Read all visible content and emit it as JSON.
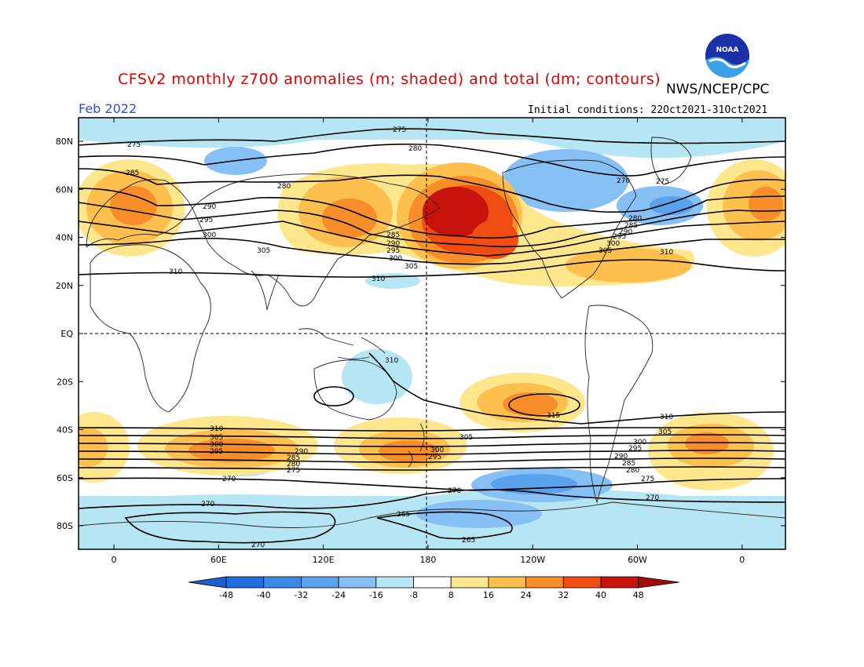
{
  "title": "CFSv2 monthly z700 anomalies (m; shaded) and total (dm; contours)",
  "agency": "NWS/NCEP/CPC",
  "logo_text": "NOAA",
  "month": "Feb 2022",
  "initial_conditions": "Initial conditions: 22Oct2021-31Oct2021",
  "lat_labels": [
    "80N",
    "60N",
    "40N",
    "20N",
    "EQ",
    "20S",
    "40S",
    "60S",
    "80S"
  ],
  "lon_labels": [
    "0",
    "60E",
    "120E",
    "180",
    "120W",
    "60W",
    "0"
  ],
  "colorbar": {
    "labels": [
      "-48",
      "-40",
      "-32",
      "-24",
      "-16",
      "-8",
      "8",
      "16",
      "24",
      "32",
      "40",
      "48"
    ],
    "colors": [
      "#1f6fe0",
      "#3a8ae6",
      "#5aa2ee",
      "#86c0f4",
      "#b6e6f4",
      "#ffffff",
      "#fee68c",
      "#fdbf4e",
      "#f88e2a",
      "#ef4d12",
      "#c8120c"
    ],
    "low_end": "#1c5fd0",
    "high_end": "#a20a0a"
  },
  "contour_labels": [
    {
      "text": "275"
    },
    {
      "text": "280"
    },
    {
      "text": "285"
    },
    {
      "text": "290"
    },
    {
      "text": "295"
    },
    {
      "text": "300"
    },
    {
      "text": "305"
    },
    {
      "text": "310"
    },
    {
      "text": "315"
    },
    {
      "text": "270"
    },
    {
      "text": "265"
    }
  ]
}
